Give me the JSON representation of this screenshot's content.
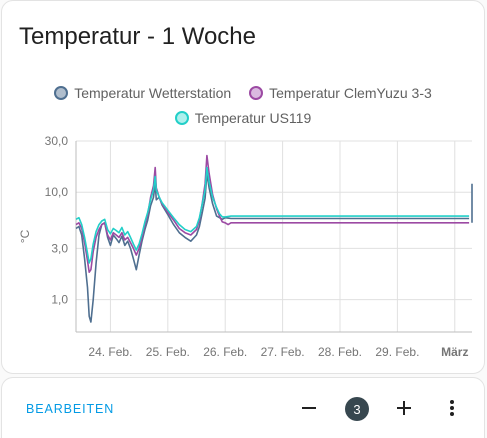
{
  "card": {
    "title": "Temperatur - 1 Woche"
  },
  "footer": {
    "edit_label": "BEARBEITEN",
    "badge_count": "3"
  },
  "colors": {
    "series_wetterstation": "#4f6f90",
    "series_clemyuzu": "#9c4aa3",
    "series_us119": "#22cfc8",
    "accent": "#039be5",
    "badge_bg": "#37474f"
  },
  "icons": {
    "minus": "minus-icon",
    "plus": "plus-icon",
    "more": "more-vert-icon"
  },
  "chart_data": {
    "type": "line",
    "title": "",
    "ylabel": "°C",
    "yscale": "log",
    "ylim": [
      0.5,
      30
    ],
    "yticks": [
      1,
      3,
      10,
      30
    ],
    "ytick_labels": [
      "1,0",
      "3,0",
      "10,0",
      "30,0"
    ],
    "xlim": [
      23.4,
      30.3
    ],
    "xticks": [
      24,
      25,
      26,
      27,
      28,
      29,
      30
    ],
    "xtick_labels": [
      "24. Feb.",
      "25. Feb.",
      "26. Feb.",
      "27. Feb.",
      "28. Feb.",
      "29. Feb.",
      "März"
    ],
    "grid": true,
    "legend_position": "top",
    "series": [
      {
        "name": "Temperatur Wetterstation",
        "color": "#4f6f90",
        "points": [
          [
            23.4,
            4.6
          ],
          [
            23.45,
            4.8
          ],
          [
            23.5,
            4.0
          ],
          [
            23.55,
            2.4
          ],
          [
            23.6,
            1.3
          ],
          [
            23.63,
            0.7
          ],
          [
            23.66,
            0.62
          ],
          [
            23.7,
            1.0
          ],
          [
            23.75,
            2.2
          ],
          [
            23.8,
            4.0
          ],
          [
            23.85,
            5.0
          ],
          [
            23.9,
            5.2
          ],
          [
            23.95,
            3.8
          ],
          [
            24.0,
            3.2
          ],
          [
            24.05,
            4.0
          ],
          [
            24.1,
            3.7
          ],
          [
            24.15,
            3.4
          ],
          [
            24.2,
            3.9
          ],
          [
            24.25,
            3.2
          ],
          [
            24.3,
            3.5
          ],
          [
            24.35,
            3.0
          ],
          [
            24.4,
            2.4
          ],
          [
            24.45,
            1.9
          ],
          [
            24.5,
            2.6
          ],
          [
            24.55,
            3.5
          ],
          [
            24.6,
            4.5
          ],
          [
            24.65,
            5.5
          ],
          [
            24.7,
            7.5
          ],
          [
            24.75,
            9.0
          ],
          [
            24.78,
            12.0
          ],
          [
            24.8,
            8.5
          ],
          [
            24.85,
            9.0
          ],
          [
            24.9,
            7.6
          ],
          [
            25.0,
            6.2
          ],
          [
            25.1,
            5.0
          ],
          [
            25.2,
            4.2
          ],
          [
            25.3,
            3.8
          ],
          [
            25.4,
            3.5
          ],
          [
            25.5,
            4.0
          ],
          [
            25.55,
            4.8
          ],
          [
            25.6,
            6.5
          ],
          [
            25.65,
            8.8
          ],
          [
            25.68,
            15.0
          ],
          [
            25.72,
            11.0
          ],
          [
            25.78,
            7.8
          ],
          [
            25.85,
            6.0
          ],
          [
            25.9,
            5.8
          ],
          [
            25.95,
            5.6
          ],
          [
            26.0,
            5.8
          ],
          [
            26.1,
            5.7
          ],
          [
            26.2,
            5.7
          ],
          [
            27.0,
            5.7
          ],
          [
            28.0,
            5.7
          ],
          [
            29.0,
            5.7
          ],
          [
            30.0,
            5.7
          ],
          [
            30.25,
            5.7
          ]
        ]
      },
      {
        "name": "Temperatur ClemYuzu 3-3",
        "color": "#9c4aa3",
        "points": [
          [
            23.4,
            5.0
          ],
          [
            23.45,
            5.2
          ],
          [
            23.5,
            4.6
          ],
          [
            23.55,
            3.4
          ],
          [
            23.6,
            2.3
          ],
          [
            23.63,
            1.8
          ],
          [
            23.66,
            1.9
          ],
          [
            23.7,
            2.8
          ],
          [
            23.75,
            3.8
          ],
          [
            23.8,
            4.5
          ],
          [
            23.85,
            5.0
          ],
          [
            23.9,
            5.2
          ],
          [
            23.95,
            4.0
          ],
          [
            24.0,
            3.6
          ],
          [
            24.05,
            4.2
          ],
          [
            24.1,
            4.0
          ],
          [
            24.15,
            3.8
          ],
          [
            24.2,
            4.2
          ],
          [
            24.25,
            3.6
          ],
          [
            24.3,
            3.8
          ],
          [
            24.35,
            3.4
          ],
          [
            24.4,
            3.0
          ],
          [
            24.45,
            2.6
          ],
          [
            24.5,
            3.0
          ],
          [
            24.55,
            3.8
          ],
          [
            24.6,
            5.0
          ],
          [
            24.65,
            6.2
          ],
          [
            24.7,
            9.0
          ],
          [
            24.75,
            11.5
          ],
          [
            24.78,
            17.0
          ],
          [
            24.8,
            11.0
          ],
          [
            24.85,
            9.0
          ],
          [
            24.9,
            7.8
          ],
          [
            25.0,
            6.5
          ],
          [
            25.1,
            5.5
          ],
          [
            25.2,
            4.6
          ],
          [
            25.3,
            4.2
          ],
          [
            25.4,
            4.0
          ],
          [
            25.5,
            4.5
          ],
          [
            25.55,
            5.5
          ],
          [
            25.6,
            8.0
          ],
          [
            25.65,
            12.0
          ],
          [
            25.68,
            22.0
          ],
          [
            25.72,
            15.0
          ],
          [
            25.78,
            9.5
          ],
          [
            25.85,
            7.0
          ],
          [
            25.9,
            6.0
          ],
          [
            25.95,
            5.3
          ],
          [
            26.0,
            5.2
          ],
          [
            26.05,
            5.0
          ],
          [
            26.1,
            5.2
          ],
          [
            27.0,
            5.2
          ],
          [
            28.0,
            5.2
          ],
          [
            29.0,
            5.2
          ],
          [
            30.0,
            5.2
          ],
          [
            30.25,
            5.2
          ]
        ]
      },
      {
        "name": "Temperatur US119",
        "color": "#22cfc8",
        "points": [
          [
            23.4,
            5.6
          ],
          [
            23.45,
            5.8
          ],
          [
            23.5,
            5.0
          ],
          [
            23.55,
            3.8
          ],
          [
            23.6,
            2.7
          ],
          [
            23.63,
            2.2
          ],
          [
            23.66,
            2.4
          ],
          [
            23.7,
            3.3
          ],
          [
            23.75,
            4.3
          ],
          [
            23.8,
            5.0
          ],
          [
            23.85,
            5.4
          ],
          [
            23.9,
            5.6
          ],
          [
            23.95,
            4.5
          ],
          [
            24.0,
            4.1
          ],
          [
            24.05,
            4.6
          ],
          [
            24.1,
            4.4
          ],
          [
            24.15,
            4.2
          ],
          [
            24.2,
            4.7
          ],
          [
            24.25,
            4.0
          ],
          [
            24.3,
            4.3
          ],
          [
            24.35,
            3.8
          ],
          [
            24.4,
            3.3
          ],
          [
            24.45,
            2.9
          ],
          [
            24.5,
            3.3
          ],
          [
            24.55,
            4.1
          ],
          [
            24.6,
            5.3
          ],
          [
            24.65,
            6.5
          ],
          [
            24.7,
            8.5
          ],
          [
            24.75,
            10.5
          ],
          [
            24.78,
            14.0
          ],
          [
            24.8,
            10.5
          ],
          [
            24.85,
            9.0
          ],
          [
            24.9,
            8.0
          ],
          [
            25.0,
            6.8
          ],
          [
            25.1,
            5.8
          ],
          [
            25.2,
            5.0
          ],
          [
            25.3,
            4.5
          ],
          [
            25.4,
            4.3
          ],
          [
            25.5,
            4.8
          ],
          [
            25.55,
            5.8
          ],
          [
            25.6,
            7.8
          ],
          [
            25.65,
            10.5
          ],
          [
            25.68,
            17.0
          ],
          [
            25.72,
            12.5
          ],
          [
            25.78,
            9.0
          ],
          [
            25.85,
            7.2
          ],
          [
            25.9,
            6.3
          ],
          [
            25.95,
            5.9
          ],
          [
            26.0,
            5.9
          ],
          [
            26.1,
            6.0
          ],
          [
            27.0,
            6.0
          ],
          [
            28.0,
            6.0
          ],
          [
            29.0,
            6.0
          ],
          [
            30.0,
            6.0
          ],
          [
            30.25,
            6.0
          ]
        ]
      }
    ]
  }
}
